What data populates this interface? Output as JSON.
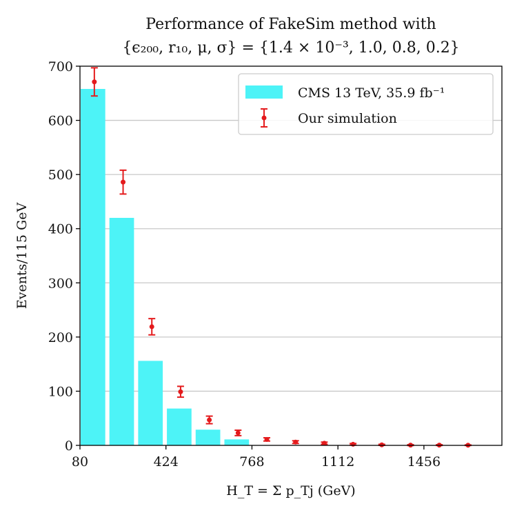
{
  "chart_data": {
    "type": "bar",
    "title_line1": "Performance of FakeSim method with",
    "title_line2": "{ϵ₂₀₀, r₁₀, μ, σ} = {1.4 × 10⁻³, 1.0, 0.8, 0.2}",
    "xlabel": "H_T = Σ p_Tj (GeV)",
    "ylabel": "Events/115 GeV",
    "xlim": [
      80,
      1768
    ],
    "ylim": [
      0,
      700
    ],
    "bin_width": 115,
    "xticks": [
      80,
      424,
      768,
      1112,
      1456
    ],
    "yticks": [
      0,
      100,
      200,
      300,
      400,
      500,
      600,
      700
    ],
    "grid": "horizontal",
    "legend_position": "top-right",
    "series": [
      {
        "name": "CMS 13 TeV, 35.9 fb⁻¹",
        "kind": "bar",
        "color": "#4df3f7",
        "bin_centers": [
          137.5,
          252.5,
          367.5,
          482.5,
          597.5,
          712.5
        ],
        "values": [
          658,
          420,
          156,
          68,
          29,
          11
        ]
      },
      {
        "name": "Our simulation",
        "kind": "errorbar",
        "color": "#e41a1c",
        "x": [
          137.5,
          252.5,
          367.5,
          482.5,
          597.5,
          712.5,
          827.5,
          942.5,
          1057.5,
          1172.5,
          1287.5,
          1402.5,
          1517.5,
          1632.5
        ],
        "values": [
          671,
          486,
          219,
          99,
          47,
          23,
          11,
          6,
          4,
          2,
          1,
          0.5,
          0.5,
          0.3
        ],
        "errors": [
          26,
          22,
          15,
          10,
          7,
          5,
          3,
          2.5,
          2,
          1.5,
          1,
          0.8,
          0.7,
          0.5
        ]
      }
    ]
  }
}
